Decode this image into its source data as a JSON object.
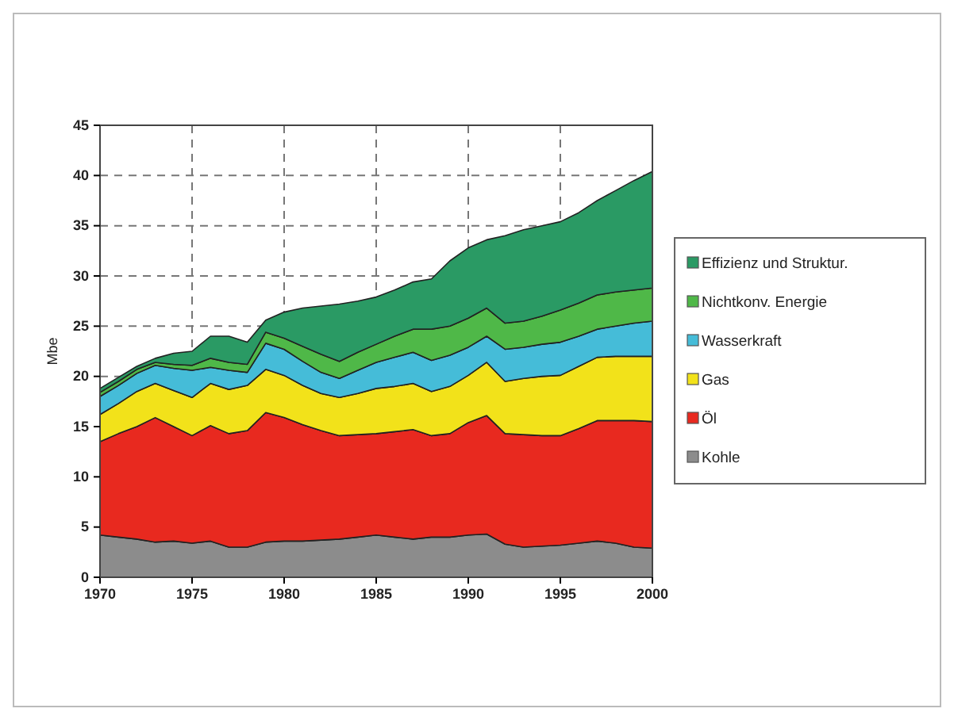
{
  "chart_data": {
    "type": "area",
    "stacked": true,
    "ylabel": "Mbe",
    "x": [
      1970,
      1971,
      1972,
      1973,
      1974,
      1975,
      1976,
      1977,
      1978,
      1979,
      1980,
      1981,
      1982,
      1983,
      1984,
      1985,
      1986,
      1987,
      1988,
      1989,
      1990,
      1991,
      1992,
      1993,
      1994,
      1995,
      1996,
      1997,
      1998,
      1999,
      2000
    ],
    "xlim": [
      1970,
      2000
    ],
    "xticks": [
      1970,
      1975,
      1980,
      1985,
      1990,
      1995,
      2000
    ],
    "ylim": [
      0,
      45
    ],
    "yticks": [
      0,
      5,
      10,
      15,
      20,
      25,
      30,
      35,
      40,
      45
    ],
    "grid": true,
    "legend": "right",
    "series": [
      {
        "name": "Kohle",
        "color": "#8c8c8c",
        "values": [
          4.2,
          4.0,
          3.8,
          3.5,
          3.6,
          3.4,
          3.6,
          3.0,
          3.0,
          3.5,
          3.6,
          3.6,
          3.7,
          3.8,
          4.0,
          4.2,
          4.0,
          3.8,
          4.0,
          4.0,
          4.2,
          4.3,
          3.3,
          3.0,
          3.1,
          3.2,
          3.4,
          3.6,
          3.4,
          3.0,
          2.9
        ]
      },
      {
        "name": "Öl",
        "color": "#e8291f",
        "values": [
          9.3,
          10.3,
          11.2,
          12.4,
          11.4,
          10.7,
          11.5,
          11.3,
          11.6,
          12.9,
          12.3,
          11.6,
          10.9,
          10.3,
          10.2,
          10.1,
          10.5,
          10.9,
          10.1,
          10.3,
          11.2,
          11.8,
          11.0,
          11.2,
          11.0,
          10.9,
          11.4,
          12.0,
          12.2,
          12.6,
          12.6
        ]
      },
      {
        "name": "Gas",
        "color": "#f2e21a",
        "values": [
          2.7,
          3.0,
          3.5,
          3.4,
          3.6,
          3.8,
          4.2,
          4.4,
          4.5,
          4.3,
          4.2,
          3.9,
          3.7,
          3.8,
          4.1,
          4.5,
          4.5,
          4.6,
          4.4,
          4.7,
          4.7,
          5.3,
          5.2,
          5.6,
          5.9,
          6.0,
          6.2,
          6.3,
          6.4,
          6.4,
          6.5
        ]
      },
      {
        "name": "Wasserkraft",
        "color": "#45bcd8",
        "values": [
          1.8,
          1.8,
          1.8,
          1.8,
          2.2,
          2.7,
          1.6,
          1.9,
          1.3,
          2.6,
          2.6,
          2.4,
          2.1,
          1.9,
          2.3,
          2.6,
          2.9,
          3.1,
          3.1,
          3.1,
          2.8,
          2.6,
          3.2,
          3.1,
          3.2,
          3.3,
          3.0,
          2.8,
          3.0,
          3.3,
          3.5
        ]
      },
      {
        "name": "Nichtkonv. Energie",
        "color": "#4fb848",
        "values": [
          0.4,
          0.4,
          0.4,
          0.3,
          0.4,
          0.5,
          0.9,
          0.8,
          0.8,
          1.1,
          1.1,
          1.5,
          1.8,
          1.7,
          1.8,
          1.8,
          2.1,
          2.3,
          3.1,
          2.9,
          2.9,
          2.8,
          2.6,
          2.6,
          2.8,
          3.2,
          3.3,
          3.4,
          3.4,
          3.3,
          3.3
        ]
      },
      {
        "name": "Effizienz und Struktur.",
        "color": "#2a9a64",
        "values": [
          0.4,
          0.4,
          0.3,
          0.4,
          1.1,
          1.4,
          2.2,
          2.6,
          2.2,
          1.2,
          2.6,
          3.8,
          4.8,
          5.7,
          5.1,
          4.7,
          4.6,
          4.7,
          5.0,
          6.5,
          7.0,
          6.8,
          8.7,
          9.1,
          9.0,
          8.8,
          9.0,
          9.4,
          10.1,
          10.9,
          11.6
        ]
      }
    ]
  }
}
